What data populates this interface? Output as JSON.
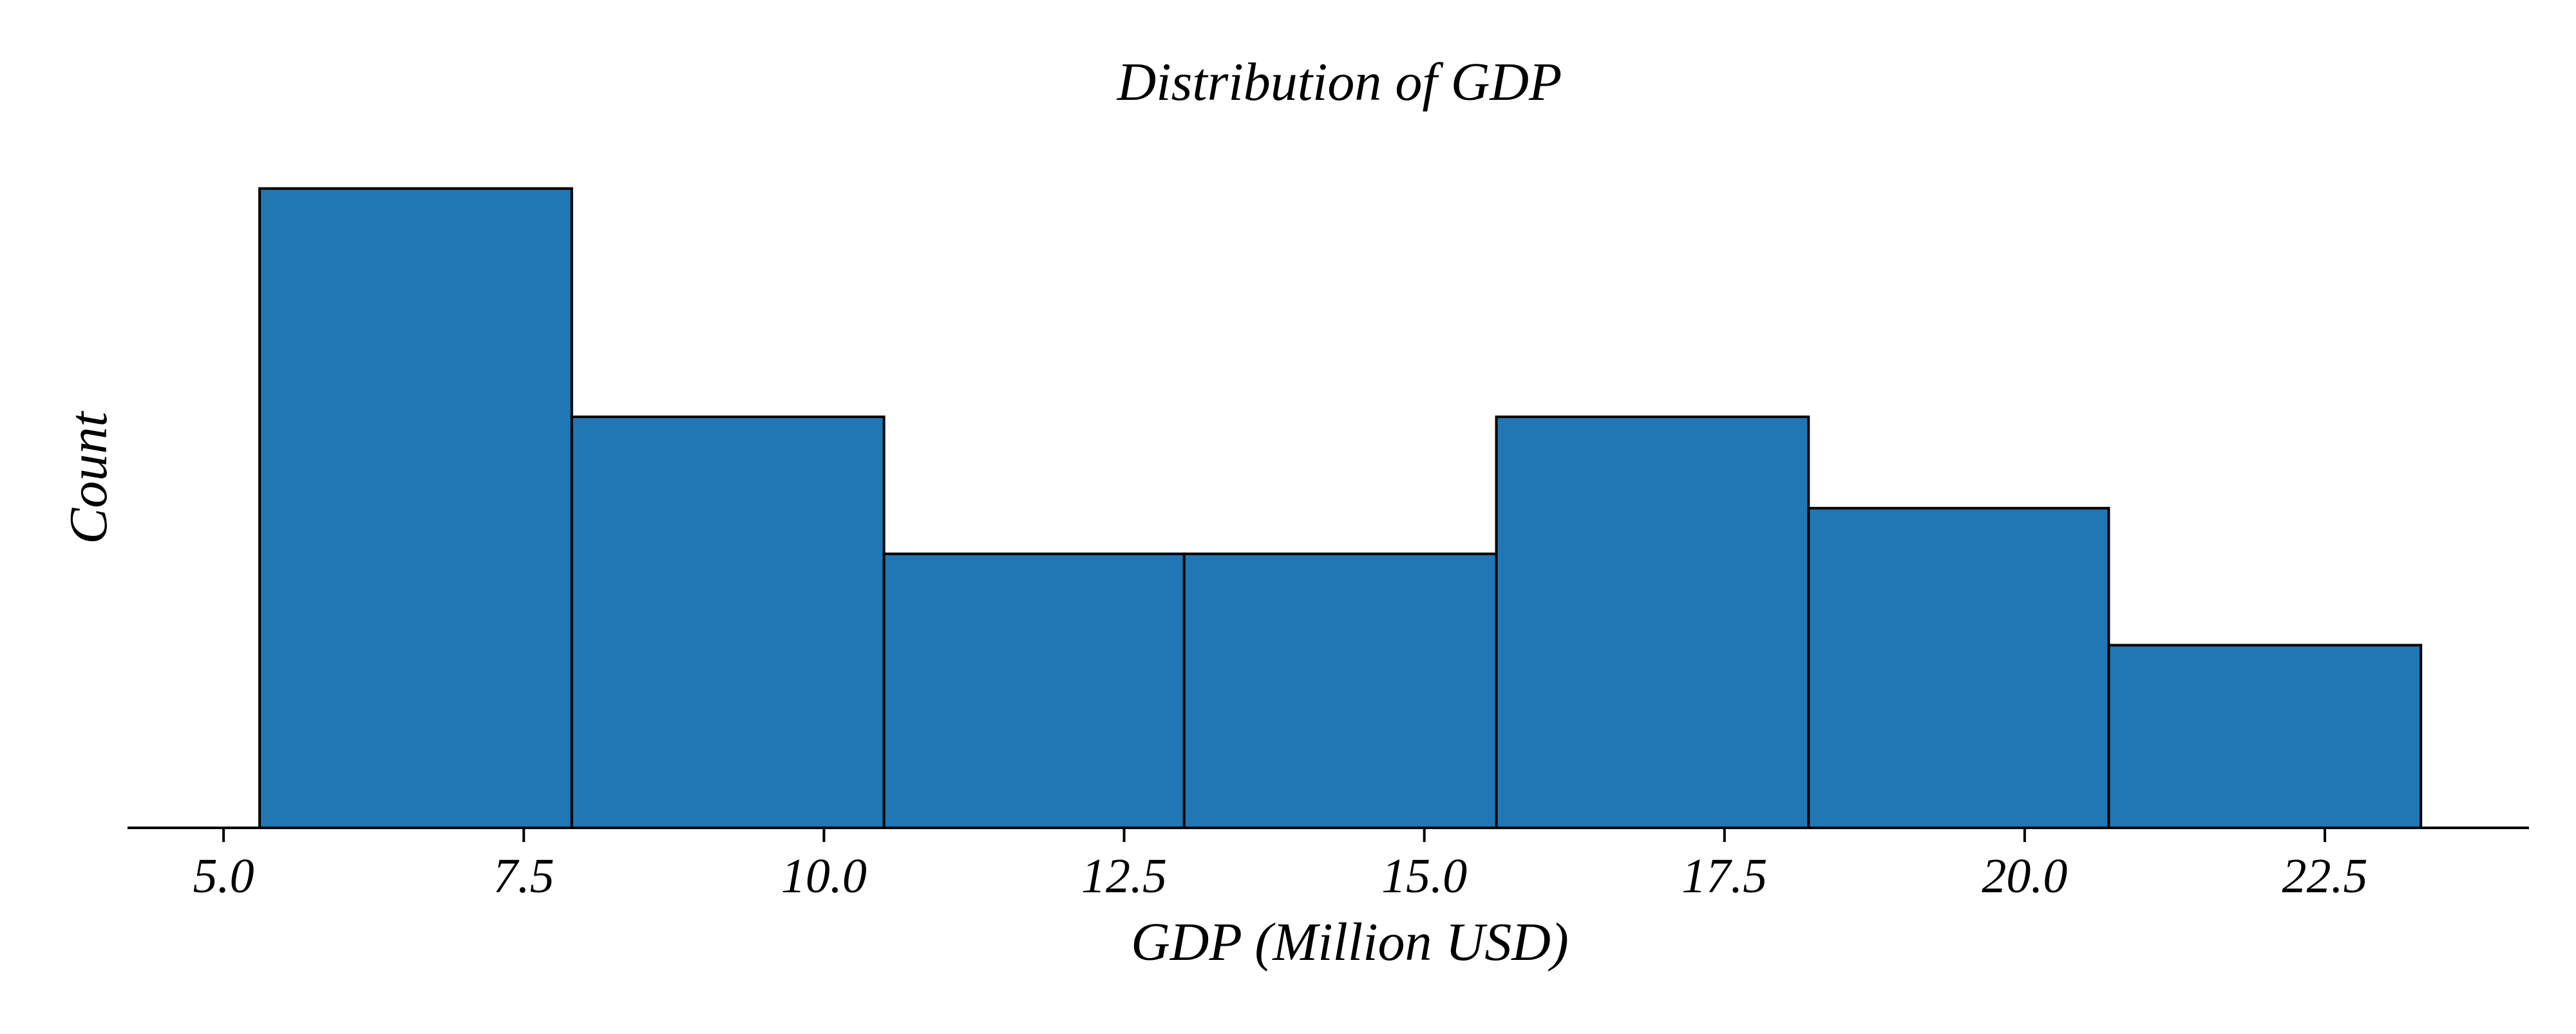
{
  "chart_data": {
    "type": "bar",
    "subtype": "histogram",
    "title": "Distribution of GDP",
    "xlabel": "GDP (Million USD)",
    "ylabel": "Count",
    "bins": [
      {
        "start": 5.3,
        "end": 7.9,
        "count": 14
      },
      {
        "start": 7.9,
        "end": 10.5,
        "count": 9
      },
      {
        "start": 10.5,
        "end": 13.0,
        "count": 6
      },
      {
        "start": 13.0,
        "end": 15.6,
        "count": 6
      },
      {
        "start": 15.6,
        "end": 18.2,
        "count": 9
      },
      {
        "start": 18.2,
        "end": 20.7,
        "count": 7
      },
      {
        "start": 20.7,
        "end": 23.3,
        "count": 4
      }
    ],
    "xticks": [
      5.0,
      7.5,
      10.0,
      12.5,
      15.0,
      17.5,
      20.0,
      22.5
    ],
    "xtick_labels": [
      "5.0",
      "7.5",
      "10.0",
      "12.5",
      "15.0",
      "17.5",
      "20.0",
      "22.5"
    ],
    "xlim": [
      4.2,
      24.2
    ],
    "ylim": [
      0,
      14.7
    ],
    "yticks_visible": false,
    "grid": false,
    "bar_color": "#2077b4",
    "edge_color": "#000000"
  }
}
